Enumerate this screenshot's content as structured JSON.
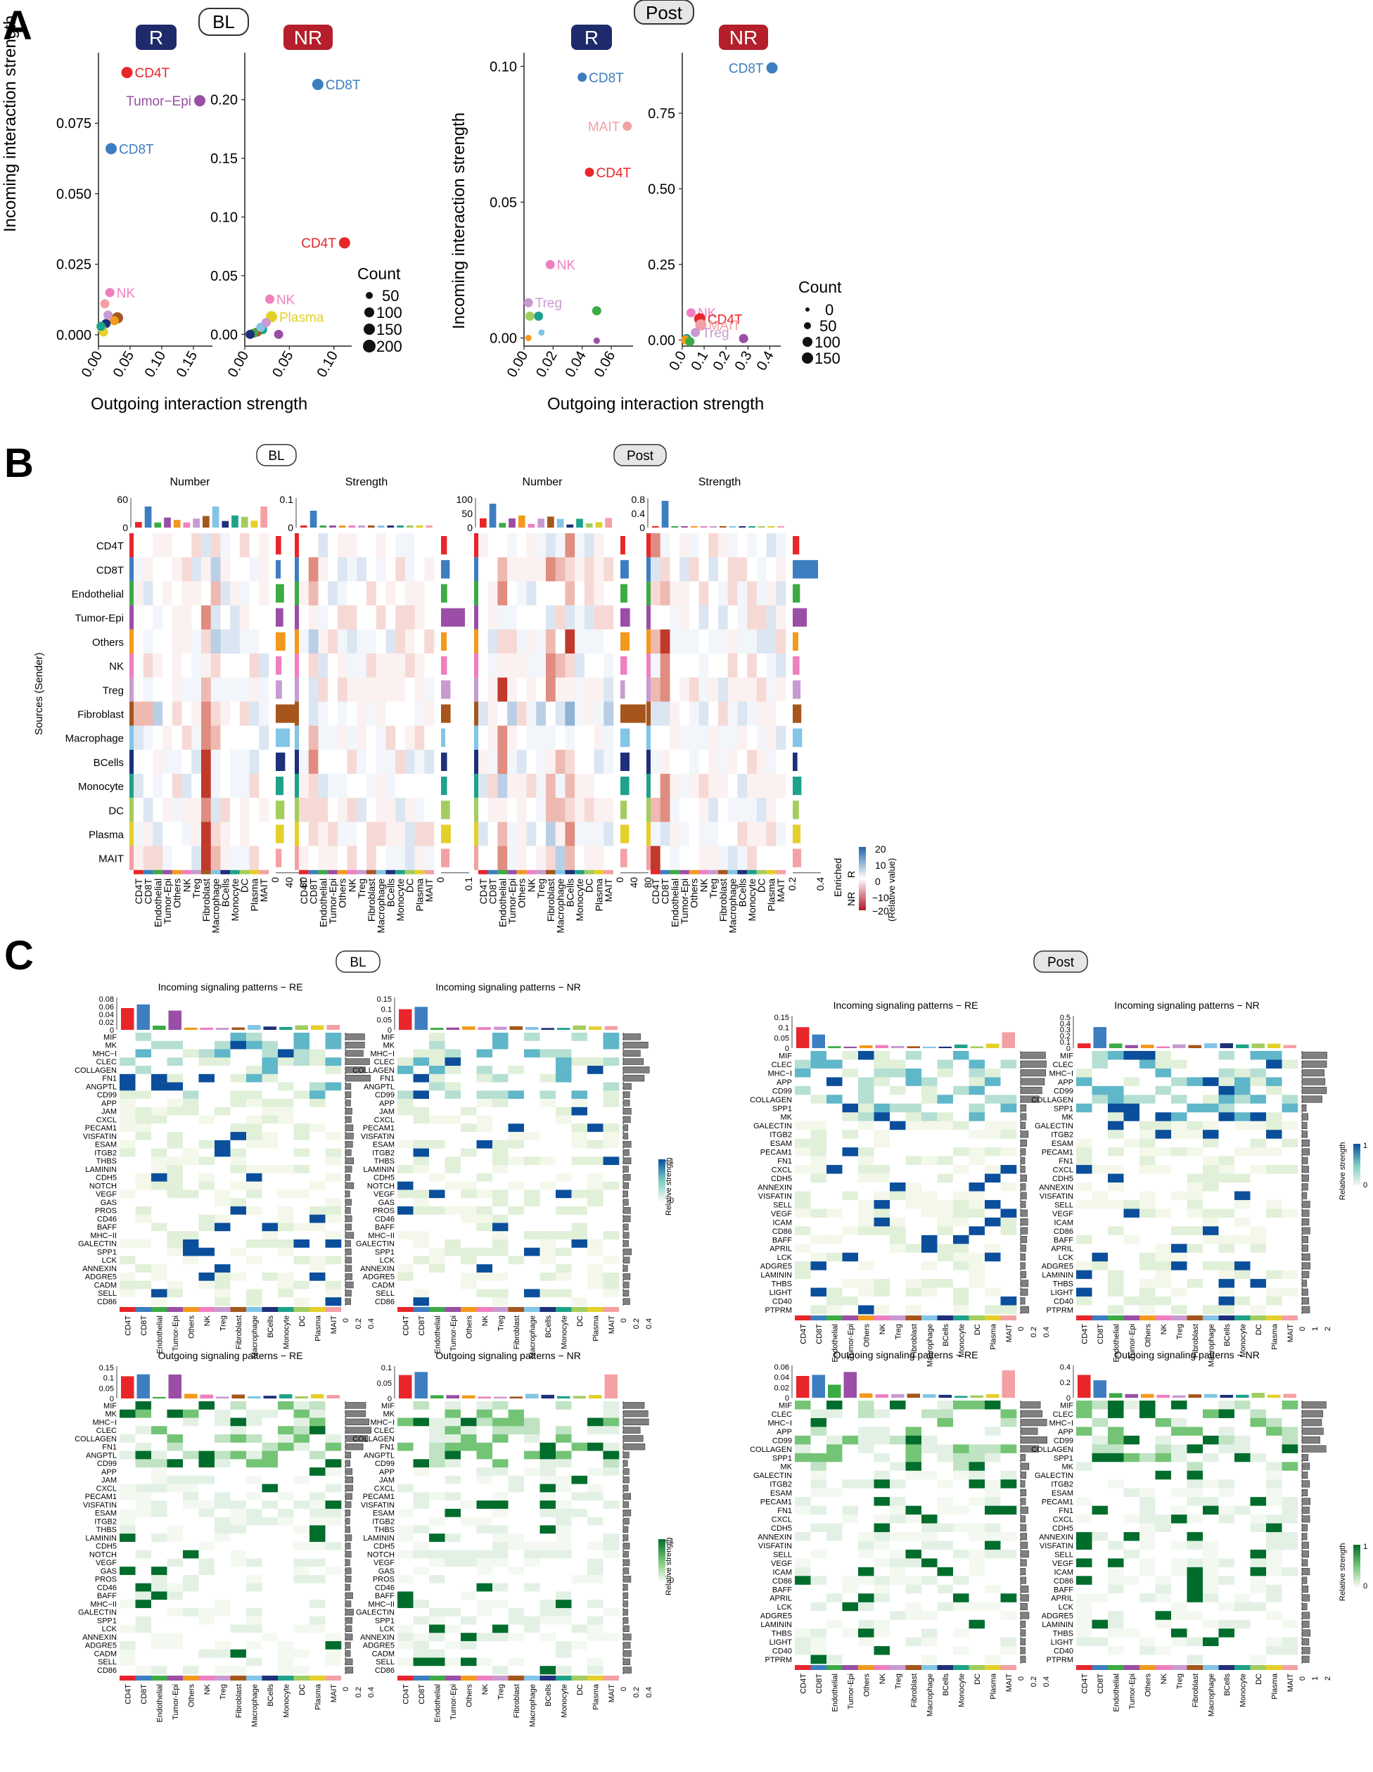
{
  "panel_letters": {
    "a": "A",
    "b": "B",
    "c": "C"
  },
  "condition_labels": {
    "bl": "BL",
    "post": "Post",
    "r": "R",
    "nr": "NR"
  },
  "colors": {
    "R_badge": "#1f2a6b",
    "NR_badge": "#b41f2b",
    "CD4T": "#e8262a",
    "CD8T": "#3d7ec1",
    "Endothelial": "#3cab45",
    "Tumor-Epi": "#9a4ea5",
    "Others": "#f39a1c",
    "NK": "#ef7fc0",
    "Treg": "#c89ad1",
    "Fibroblast": "#a6561c",
    "Macrophage": "#82c5e6",
    "BCells": "#1f2f7a",
    "Monocyte": "#1ea289",
    "DC": "#a3cd5e",
    "Plasma": "#e5cf2a",
    "MAIT": "#f4a0a4",
    "enriched_R": "#2166ac",
    "enriched_NR": "#b2182b",
    "strength_in": "#0b4f9c",
    "strength_out": "#006d2c"
  },
  "cell_types": [
    "CD4T",
    "CD8T",
    "Endothelial",
    "Tumor-Epi",
    "Others",
    "NK",
    "Treg",
    "Fibroblast",
    "Macrophage",
    "BCells",
    "Monocyte",
    "DC",
    "Plasma",
    "MAIT"
  ],
  "panelA": {
    "xlabel": "Outgoing interaction strength",
    "ylabel": "Incoming interaction strength",
    "size_legend_title": "Count",
    "bl_size_legend": [
      "50",
      "100",
      "150",
      "200"
    ],
    "post_size_legend": [
      "0",
      "50",
      "100",
      "150"
    ]
  },
  "panelB": {
    "titles": {
      "number": "Number",
      "strength": "Strength"
    },
    "ylabel": "Sources (Sender)",
    "legend_title": "Enriched",
    "legend_sub": "(Relative value)",
    "legend_ticks": [
      "20",
      "10",
      "0",
      "−10",
      "−20"
    ],
    "legend_r": "R",
    "legend_nr": "NR"
  },
  "panelC": {
    "titles": {
      "in_re": "Incoming signaling patterns − RE",
      "in_nr": "Incoming signaling patterns − NR",
      "out_re": "Outgoing signaling patterns − RE",
      "out_nr": "Outgoing signaling patterns − NR"
    },
    "legend_label": "Relative strength",
    "legend_ticks": [
      "1",
      "0"
    ],
    "bl_in_pathways": [
      "MIF",
      "MK",
      "MHC−I",
      "CLEC",
      "COLLAGEN",
      "FN1",
      "ANGPTL",
      "CD99",
      "APP",
      "JAM",
      "CXCL",
      "PECAM1",
      "VISFATIN",
      "ESAM",
      "ITGB2",
      "THBS",
      "LAMININ",
      "CDH5",
      "NOTCH",
      "VEGF",
      "GAS",
      "PROS",
      "CD46",
      "BAFF",
      "MHC−II",
      "GALECTIN",
      "SPP1",
      "LCK",
      "ANNEXIN",
      "ADGRE5",
      "CADM",
      "SELL",
      "CD86"
    ],
    "bl_out_pathways": [
      "MIF",
      "MK",
      "MHC−I",
      "CLEC",
      "COLLAGEN",
      "FN1",
      "ANGPTL",
      "CD99",
      "APP",
      "JAM",
      "CXCL",
      "PECAM1",
      "VISFATIN",
      "ESAM",
      "ITGB2",
      "THBS",
      "LAMININ",
      "CDH5",
      "NOTCH",
      "VEGF",
      "GAS",
      "PROS",
      "CD46",
      "BAFF",
      "MHC−II",
      "GALECTIN",
      "SPP1",
      "LCK",
      "ANNEXIN",
      "ADGRE5",
      "CADM",
      "SELL",
      "CD86"
    ],
    "post_in_pathways": [
      "MIF",
      "CLEC",
      "MHC−I",
      "APP",
      "CD99",
      "COLLAGEN",
      "SPP1",
      "MK",
      "GALECTIN",
      "ITGB2",
      "ESAM",
      "PECAM1",
      "FN1",
      "CXCL",
      "CDH5",
      "ANNEXIN",
      "VISFATIN",
      "SELL",
      "VEGF",
      "ICAM",
      "CD86",
      "BAFF",
      "APRIL",
      "LCK",
      "ADGRE5",
      "LAMININ",
      "THBS",
      "LIGHT",
      "CD40",
      "PTPRM"
    ],
    "post_out_pathways": [
      "MIF",
      "CLEC",
      "MHC−I",
      "APP",
      "CD99",
      "COLLAGEN",
      "SPP1",
      "MK",
      "GALECTIN",
      "ITGB2",
      "ESAM",
      "PECAM1",
      "FN1",
      "CXCL",
      "CDH5",
      "ANNEXIN",
      "VISFATIN",
      "SELL",
      "VEGF",
      "ICAM",
      "CD86",
      "BAFF",
      "APRIL",
      "LCK",
      "ADGRE5",
      "LAMININ",
      "THBS",
      "LIGHT",
      "CD40",
      "PTPRM"
    ]
  },
  "chart_data": [
    {
      "type": "scatter",
      "panel": "A-BL-R",
      "xlabel": "Outgoing interaction strength",
      "ylabel": "Incoming interaction strength",
      "xlim": [
        0,
        0.18
      ],
      "ylim": [
        -0.004,
        0.1
      ],
      "xticks": [
        "0.00",
        "0.05",
        "0.10",
        "0.15"
      ],
      "yticks": [
        "0.000",
        "0.025",
        "0.050",
        "0.075"
      ],
      "points": [
        {
          "label": "CD4T",
          "x": 0.045,
          "y": 0.093,
          "color": "#e8262a",
          "size": 3
        },
        {
          "label": "Tumor−Epi",
          "x": 0.16,
          "y": 0.083,
          "color": "#9a4ea5",
          "size": 3
        },
        {
          "label": "CD8T",
          "x": 0.02,
          "y": 0.066,
          "color": "#3d7ec1",
          "size": 3
        },
        {
          "label": "NK",
          "x": 0.018,
          "y": 0.015,
          "color": "#ef7fc0",
          "size": 2
        },
        {
          "label": "",
          "x": 0.01,
          "y": 0.011,
          "color": "#f4a0a4",
          "size": 2
        },
        {
          "label": "",
          "x": 0.03,
          "y": 0.006,
          "color": "#a6561c",
          "size": 3
        },
        {
          "label": "",
          "x": 0.025,
          "y": 0.005,
          "color": "#f39a1c",
          "size": 2
        },
        {
          "label": "",
          "x": 0.012,
          "y": 0.004,
          "color": "#1f2f7a",
          "size": 2
        },
        {
          "label": "",
          "x": 0.006,
          "y": 0.002,
          "color": "#a3cd5e",
          "size": 2
        },
        {
          "label": "",
          "x": 0.008,
          "y": 0.001,
          "color": "#e5cf2a",
          "size": 2
        },
        {
          "label": "",
          "x": 0.004,
          "y": 0.003,
          "color": "#1ea289",
          "size": 2
        },
        {
          "label": "",
          "x": 0.015,
          "y": 0.007,
          "color": "#c89ad1",
          "size": 2
        }
      ]
    },
    {
      "type": "scatter",
      "panel": "A-BL-NR",
      "xlim": [
        0,
        0.12
      ],
      "ylim": [
        -0.01,
        0.24
      ],
      "xticks": [
        "0.00",
        "0.05",
        "0.10"
      ],
      "yticks": [
        "0.00",
        "0.05",
        "0.10",
        "0.15",
        "0.20"
      ],
      "points": [
        {
          "label": "CD8T",
          "x": 0.082,
          "y": 0.213,
          "color": "#3d7ec1",
          "size": 3
        },
        {
          "label": "CD4T",
          "x": 0.112,
          "y": 0.078,
          "color": "#e8262a",
          "size": 3
        },
        {
          "label": "NK",
          "x": 0.028,
          "y": 0.03,
          "color": "#ef7fc0",
          "size": 2
        },
        {
          "label": "Plasma",
          "x": 0.03,
          "y": 0.015,
          "color": "#e5cf2a",
          "size": 3
        },
        {
          "label": "",
          "x": 0.038,
          "y": 0.0,
          "color": "#9a4ea5",
          "size": 2
        },
        {
          "label": "",
          "x": 0.02,
          "y": 0.004,
          "color": "#1ea289",
          "size": 2
        },
        {
          "label": "",
          "x": 0.014,
          "y": 0.002,
          "color": "#a6561c",
          "size": 2
        },
        {
          "label": "",
          "x": 0.01,
          "y": 0.001,
          "color": "#3cab45",
          "size": 2
        },
        {
          "label": "",
          "x": 0.018,
          "y": 0.006,
          "color": "#82c5e6",
          "size": 2
        },
        {
          "label": "",
          "x": 0.024,
          "y": 0.01,
          "color": "#c89ad1",
          "size": 2
        },
        {
          "label": "",
          "x": 0.006,
          "y": 0.0,
          "color": "#1f2f7a",
          "size": 2
        }
      ]
    },
    {
      "type": "scatter",
      "panel": "A-Post-R",
      "xlim": [
        0,
        0.075
      ],
      "ylim": [
        -0.003,
        0.105
      ],
      "xticks": [
        "0.00",
        "0.02",
        "0.04",
        "0.06"
      ],
      "yticks": [
        "0.00",
        "0.05",
        "0.10"
      ],
      "points": [
        {
          "label": "CD8T",
          "x": 0.04,
          "y": 0.096,
          "color": "#3d7ec1",
          "size": 2
        },
        {
          "label": "MAIT",
          "x": 0.071,
          "y": 0.078,
          "color": "#f4a0a4",
          "size": 2
        },
        {
          "label": "CD4T",
          "x": 0.045,
          "y": 0.061,
          "color": "#e8262a",
          "size": 2
        },
        {
          "label": "NK",
          "x": 0.018,
          "y": 0.027,
          "color": "#ef7fc0",
          "size": 2
        },
        {
          "label": "Treg",
          "x": 0.003,
          "y": 0.013,
          "color": "#c89ad1",
          "size": 2
        },
        {
          "label": "",
          "x": 0.05,
          "y": 0.01,
          "color": "#3cab45",
          "size": 2
        },
        {
          "label": "",
          "x": 0.05,
          "y": -0.001,
          "color": "#9a4ea5",
          "size": 1
        },
        {
          "label": "",
          "x": 0.01,
          "y": 0.008,
          "color": "#1ea289",
          "size": 2
        },
        {
          "label": "",
          "x": 0.004,
          "y": 0.008,
          "color": "#a3cd5e",
          "size": 2
        },
        {
          "label": "",
          "x": 0.003,
          "y": 0.0,
          "color": "#f39a1c",
          "size": 1
        },
        {
          "label": "",
          "x": 0.012,
          "y": 0.002,
          "color": "#82c5e6",
          "size": 1
        }
      ]
    },
    {
      "type": "scatter",
      "panel": "A-Post-NR",
      "xlim": [
        0,
        0.45
      ],
      "ylim": [
        -0.02,
        0.95
      ],
      "xticks": [
        "0.0",
        "0.1",
        "0.2",
        "0.3",
        "0.4"
      ],
      "yticks": [
        "0.00",
        "0.25",
        "0.50",
        "0.75"
      ],
      "points": [
        {
          "label": "CD8T",
          "x": 0.41,
          "y": 0.9,
          "color": "#3d7ec1",
          "size": 3
        },
        {
          "label": "NK",
          "x": 0.04,
          "y": 0.09,
          "color": "#ef7fc0",
          "size": 2
        },
        {
          "label": "CD4T",
          "x": 0.08,
          "y": 0.07,
          "color": "#e8262a",
          "size": 3
        },
        {
          "label": "MAIT",
          "x": 0.085,
          "y": 0.05,
          "color": "#f4a0a4",
          "size": 3
        },
        {
          "label": "Treg",
          "x": 0.06,
          "y": 0.025,
          "color": "#c89ad1",
          "size": 2
        },
        {
          "label": "",
          "x": 0.28,
          "y": 0.005,
          "color": "#9a4ea5",
          "size": 2
        },
        {
          "label": "",
          "x": 0.02,
          "y": 0.005,
          "color": "#1ea289",
          "size": 2
        },
        {
          "label": "",
          "x": 0.015,
          "y": 0.0,
          "color": "#f39a1c",
          "size": 2
        },
        {
          "label": "",
          "x": 0.035,
          "y": -0.005,
          "color": "#3cab45",
          "size": 2
        }
      ]
    }
  ]
}
